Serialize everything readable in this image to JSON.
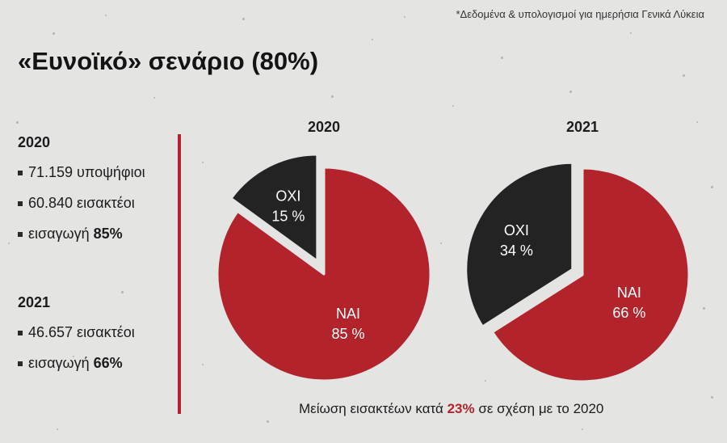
{
  "footnote": "*Δεδομένα & υπολογισμοί για ημερήσια Γενικά Λύκεια",
  "title": "«Ευνοϊκό» σενάριο (80%)",
  "sidebar": {
    "y2020": {
      "year": "2020",
      "candidates": "71.159 υποψήφιοι",
      "admitted": "60.840 εισακτέοι",
      "admission_label": "εισαγωγή",
      "admission_value": "85%"
    },
    "y2021": {
      "year": "2021",
      "admitted": "46.657 εισακτέοι",
      "admission_label": "εισαγωγή",
      "admission_value": "66%"
    }
  },
  "bottom_note": {
    "prefix": "Μείωση εισακτέων κατά",
    "highlight": "23%",
    "suffix": "σε σχέση με το 2020"
  },
  "colors": {
    "yes": "#b2232b",
    "no": "#232323",
    "accent": "#b2232b"
  },
  "chart_data": [
    {
      "type": "pie",
      "title": "2020",
      "slices": [
        {
          "label": "ΝΑΙ",
          "value": 85,
          "value_label": "85 %",
          "color": "#b2232b"
        },
        {
          "label": "ΟΧΙ",
          "value": 15,
          "value_label": "15 %",
          "color": "#232323",
          "exploded": true
        }
      ]
    },
    {
      "type": "pie",
      "title": "2021",
      "slices": [
        {
          "label": "ΝΑΙ",
          "value": 66,
          "value_label": "66 %",
          "color": "#b2232b"
        },
        {
          "label": "ΟΧΙ",
          "value": 34,
          "value_label": "34 %",
          "color": "#232323",
          "exploded": true
        }
      ]
    }
  ]
}
